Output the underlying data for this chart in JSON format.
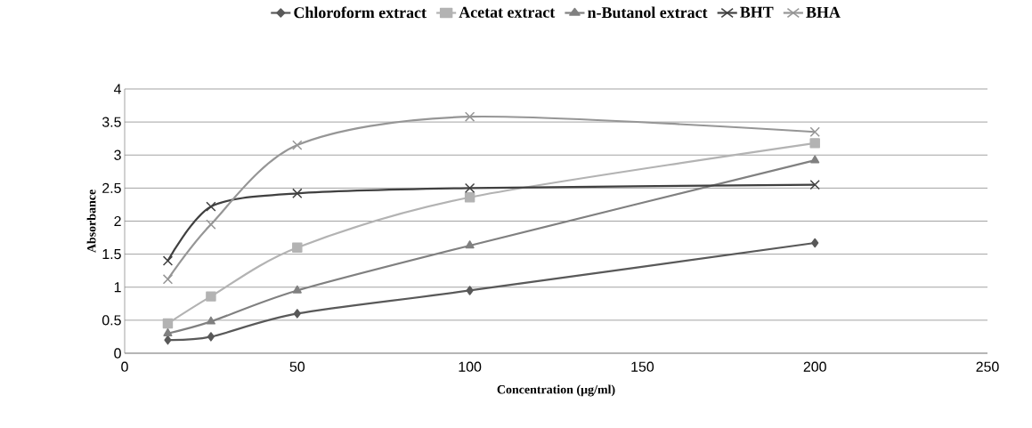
{
  "chart_data": {
    "type": "line",
    "xlabel": "Concentration (µg/ml)",
    "ylabel": "Absorbance",
    "x": [
      12.5,
      25,
      50,
      100,
      200
    ],
    "series": [
      {
        "name": "Chloroform extract",
        "color": "#595959",
        "marker": "diamond",
        "values": [
          0.2,
          0.25,
          0.6,
          0.95,
          1.67
        ]
      },
      {
        "name": "Acetat extract",
        "color": "#b3b3b3",
        "marker": "square",
        "values": [
          0.45,
          0.86,
          1.6,
          2.36,
          3.18
        ]
      },
      {
        "name": "n-Butanol extract",
        "color": "#808080",
        "marker": "triangle",
        "values": [
          0.3,
          0.48,
          0.95,
          1.63,
          2.92
        ]
      },
      {
        "name": "BHT",
        "color": "#404040",
        "marker": "cross",
        "values": [
          1.4,
          2.22,
          2.42,
          2.5,
          2.55
        ]
      },
      {
        "name": "BHA",
        "color": "#969696",
        "marker": "cross",
        "values": [
          1.12,
          1.95,
          3.15,
          3.58,
          3.35
        ]
      }
    ],
    "xlim": [
      0,
      250
    ],
    "ylim": [
      0,
      4
    ],
    "xticks": [
      0,
      50,
      100,
      150,
      200,
      250
    ],
    "yticks": [
      0,
      0.5,
      1,
      1.5,
      2,
      2.5,
      3,
      3.5,
      4
    ],
    "grid": "y",
    "legend": "top",
    "line_style": "solid"
  }
}
